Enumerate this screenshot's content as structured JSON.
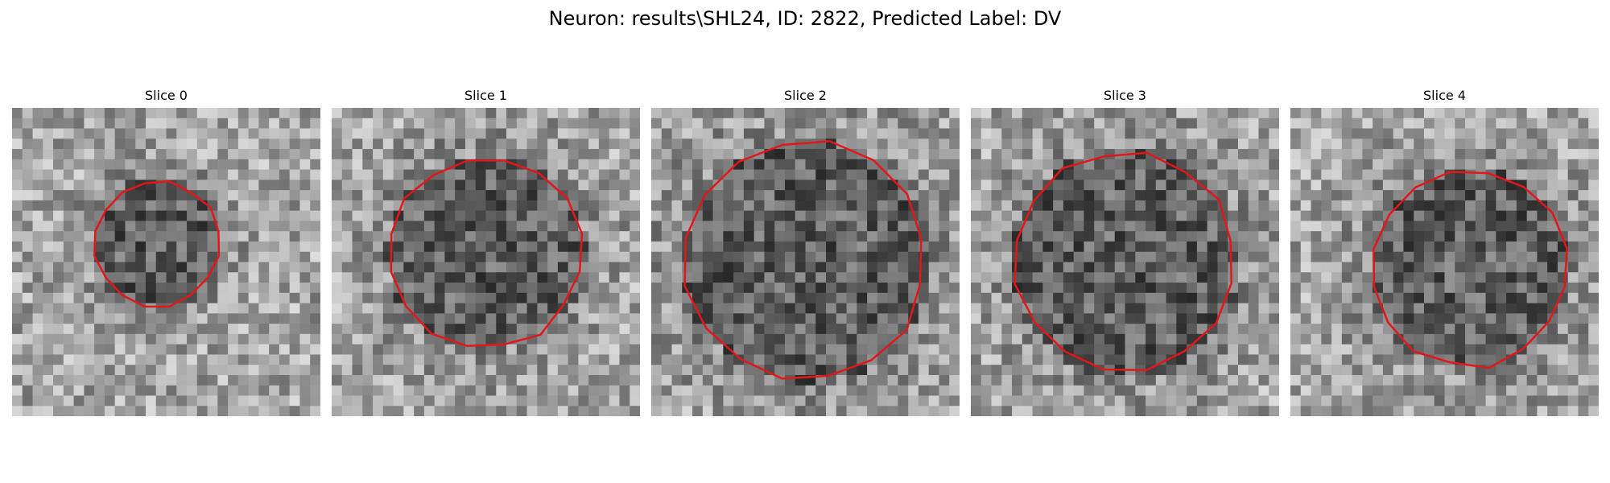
{
  "figure": {
    "suptitle": "Neuron: results\\SHL24, ID: 2822, Predicted Label: DV",
    "colormap": "gray",
    "contour_color": "#e3161a",
    "grid_size": 30
  },
  "panels": [
    {
      "title": "Slice 0"
    },
    {
      "title": "Slice 1"
    },
    {
      "title": "Slice 2"
    },
    {
      "title": "Slice 3"
    },
    {
      "title": "Slice 4"
    }
  ]
}
